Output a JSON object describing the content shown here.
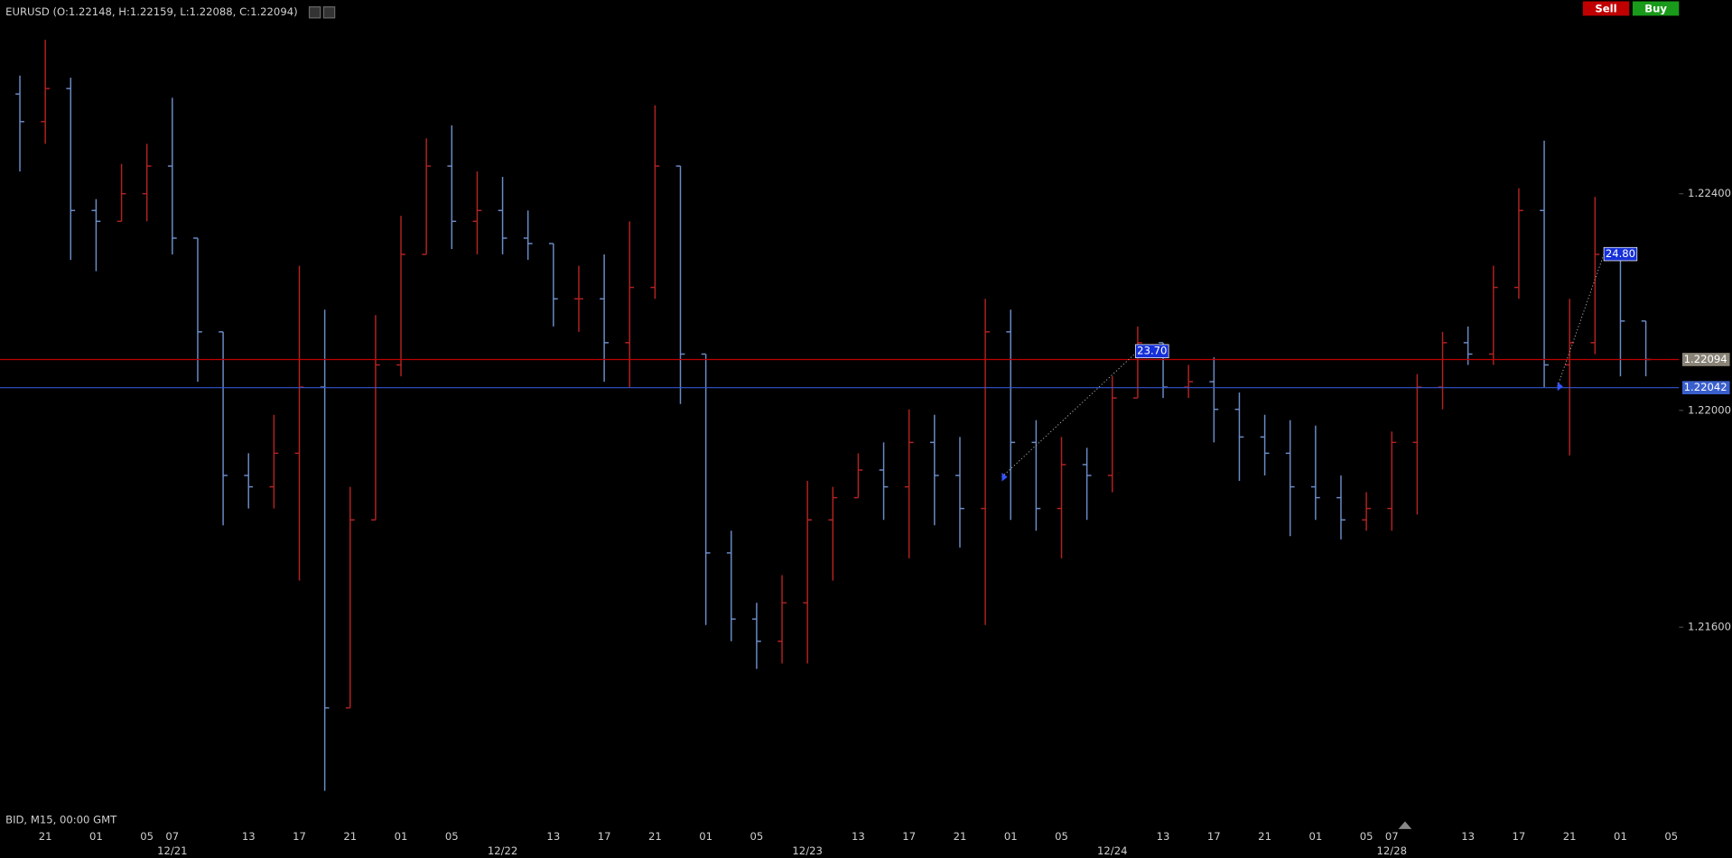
{
  "chart_data": {
    "type": "ohlc",
    "title": "EURUSD (O:1.22148, H:1.22159, L:1.22088, C:1.22094)",
    "footer": "BID, M15, 00:00 GMT",
    "categories": [
      null,
      "21",
      null,
      "01",
      null,
      "05",
      "07",
      null,
      null,
      "13",
      null,
      "17",
      null,
      "21",
      null,
      "01",
      null,
      "05",
      null,
      null,
      null,
      "13",
      null,
      "17",
      null,
      "21",
      null,
      "01",
      null,
      "05",
      null,
      null,
      null,
      "13",
      null,
      "17",
      null,
      "21",
      null,
      "01",
      null,
      "05",
      null,
      null,
      null,
      "13",
      null,
      "17",
      null,
      "21",
      null,
      "01",
      null,
      "05",
      "07",
      null,
      null,
      "13",
      null,
      "17",
      null,
      "21",
      null,
      "01",
      null,
      "05"
    ],
    "day_labels": [
      null,
      null,
      null,
      null,
      null,
      null,
      "12/21",
      null,
      null,
      null,
      null,
      null,
      null,
      null,
      null,
      null,
      null,
      null,
      null,
      "12/22",
      null,
      null,
      null,
      null,
      null,
      null,
      null,
      null,
      null,
      null,
      null,
      "12/23",
      null,
      null,
      null,
      null,
      null,
      null,
      null,
      null,
      null,
      null,
      null,
      "12/24",
      null,
      null,
      null,
      null,
      null,
      null,
      null,
      null,
      null,
      null,
      "12/28",
      null,
      null,
      null,
      null,
      null,
      null,
      null,
      null,
      null,
      null,
      null
    ],
    "open": [
      1.22584,
      1.22533,
      1.22594,
      1.22369,
      1.22349,
      1.224,
      1.22451,
      1.22318,
      1.22145,
      1.2188,
      1.21859,
      1.21921,
      1.22043,
      1.21451,
      1.21798,
      1.22084,
      1.22288,
      1.22451,
      1.22349,
      1.22369,
      1.22318,
      1.22308,
      1.22206,
      1.22206,
      1.22125,
      1.22227,
      1.22451,
      1.22104,
      1.21737,
      1.21615,
      1.21574,
      1.21645,
      1.21798,
      1.21839,
      1.2189,
      1.21859,
      1.21941,
      1.2188,
      1.21819,
      1.22145,
      1.21941,
      1.21819,
      1.219,
      1.2188,
      1.22023,
      1.22125,
      1.22043,
      1.22053,
      1.22002,
      1.21951,
      1.21921,
      1.21859,
      1.21839,
      1.21798,
      1.21819,
      1.21941,
      1.22043,
      1.22125,
      1.22104,
      1.22227,
      1.22369,
      1.22084,
      1.22125,
      1.22288,
      1.22165,
      null
    ],
    "high": [
      1.22618,
      1.22684,
      1.22614,
      1.2239,
      1.22455,
      1.22492,
      1.22577,
      1.22318,
      1.22145,
      1.21921,
      1.21992,
      1.22267,
      1.22186,
      1.21859,
      1.22176,
      1.22359,
      1.22502,
      1.22526,
      1.22441,
      1.22431,
      1.22369,
      1.22308,
      1.22267,
      1.22288,
      1.22349,
      1.22563,
      1.22451,
      1.22104,
      1.21778,
      1.21645,
      1.21696,
      1.2187,
      1.21859,
      1.21921,
      1.21941,
      1.22002,
      1.21992,
      1.21951,
      1.22206,
      1.22186,
      1.21982,
      1.21951,
      1.21931,
      1.22063,
      1.22155,
      1.22125,
      1.22084,
      1.22098,
      1.22033,
      1.21992,
      1.21982,
      1.21972,
      1.2188,
      1.21849,
      1.21961,
      1.22067,
      1.22145,
      1.22155,
      1.22267,
      1.2241,
      1.22498,
      1.22206,
      1.22394,
      1.22288,
      1.22165,
      null
    ],
    "low": [
      1.22441,
      1.22492,
      1.22278,
      1.22257,
      1.22349,
      1.22349,
      1.22288,
      1.22053,
      1.21788,
      1.21819,
      1.21819,
      1.21686,
      1.21298,
      1.21451,
      1.21798,
      1.22063,
      1.22288,
      1.22298,
      1.22288,
      1.22288,
      1.22278,
      1.22155,
      1.22145,
      1.22053,
      1.22043,
      1.22206,
      1.22012,
      1.21604,
      1.21574,
      1.21523,
      1.21533,
      1.21533,
      1.21686,
      1.21839,
      1.21798,
      1.21727,
      1.21788,
      1.21747,
      1.21604,
      1.21798,
      1.21778,
      1.21727,
      1.21798,
      1.21849,
      1.22023,
      1.22023,
      1.22023,
      1.21941,
      1.2187,
      1.2188,
      1.21768,
      1.21798,
      1.21762,
      1.21778,
      1.21778,
      1.21808,
      1.22002,
      1.22084,
      1.22084,
      1.22206,
      1.22043,
      1.21917,
      1.22104,
      1.22063,
      1.22063,
      null
    ],
    "close": [
      1.22533,
      1.22594,
      1.22369,
      1.22349,
      1.224,
      1.22451,
      1.22318,
      1.22145,
      1.2188,
      1.21859,
      1.21921,
      1.22043,
      1.21451,
      1.21798,
      1.22084,
      1.22288,
      1.22451,
      1.22349,
      1.22369,
      1.22318,
      1.22308,
      1.22206,
      1.22206,
      1.22125,
      1.22227,
      1.22451,
      1.22104,
      1.21737,
      1.21615,
      1.21574,
      1.21645,
      1.21798,
      1.21839,
      1.2189,
      1.21859,
      1.21941,
      1.2188,
      1.21819,
      1.22145,
      1.21941,
      1.21819,
      1.219,
      1.2188,
      1.22023,
      1.22125,
      1.22043,
      1.22053,
      1.22002,
      1.21951,
      1.21921,
      1.21859,
      1.21839,
      1.21798,
      1.21819,
      1.21941,
      1.22043,
      1.22125,
      1.22104,
      1.22227,
      1.22369,
      1.22084,
      1.22125,
      1.22288,
      1.22165,
      1.22094,
      null
    ],
    "up_color": "#b22222",
    "down_color": "#6b8cc7",
    "ylim": [
      1.2126,
      1.22757
    ],
    "yticks": [
      {
        "value": 1.224,
        "label": "1.22400"
      },
      {
        "value": 1.22,
        "label": "1.22000"
      },
      {
        "value": 1.216,
        "label": "1.21600"
      }
    ],
    "price_lines": [
      {
        "value": 1.22094,
        "color": "#c00000",
        "box_color": "#8a8478"
      },
      {
        "value": 1.22042,
        "color": "#3355cc",
        "box_color": "#3a5fcd"
      }
    ],
    "annotations": [
      {
        "text": "23.70"
      },
      {
        "text": "24.80"
      }
    ],
    "grid": false
  },
  "buttons": [
    "Sell",
    "Buy"
  ]
}
